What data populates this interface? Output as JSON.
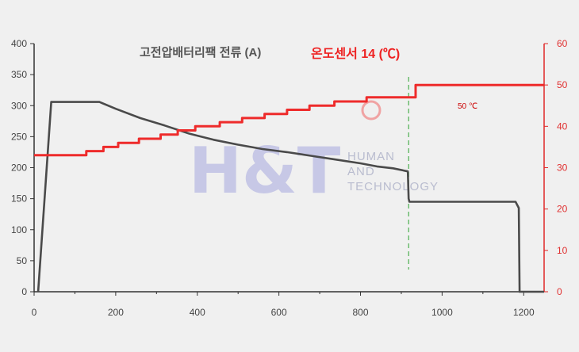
{
  "chart_data": {
    "type": "line",
    "title_current": "고전압배터리팩 전류 (A)",
    "title_temp": "온도센서 14 (℃)",
    "annotation": "50 ℃",
    "watermark": {
      "logo": "H&T",
      "line1": "HUMAN",
      "line2": "AND",
      "line3": "TECHNOLOGY"
    },
    "xlim": [
      0,
      1250
    ],
    "ylim_left": [
      0,
      400
    ],
    "ylim_right": [
      0,
      60
    ],
    "xticks": [
      "0",
      "200",
      "400",
      "600",
      "800",
      "1000",
      "1200"
    ],
    "yticks_left": [
      "0",
      "50",
      "100",
      "150",
      "200",
      "250",
      "300",
      "350",
      "400"
    ],
    "yticks_right": [
      "0",
      "10",
      "20",
      "30",
      "40",
      "50",
      "60"
    ],
    "grid": false,
    "marker_x": 918,
    "series": [
      {
        "name": "고전압배터리팩 전류 (A)",
        "axis": "left",
        "color": "#4a4a4a",
        "x": [
          10,
          42,
          160,
          200,
          260,
          320,
          380,
          440,
          500,
          560,
          620,
          680,
          740,
          800,
          840,
          880,
          916,
          918,
          920,
          1180,
          1188,
          1190,
          1250
        ],
        "y": [
          0,
          306,
          306,
          295,
          280,
          268,
          255,
          245,
          237,
          230,
          225,
          219,
          213,
          207,
          202,
          199,
          194,
          150,
          145,
          145,
          135,
          0,
          0
        ]
      },
      {
        "name": "온도센서 14 (℃)",
        "axis": "right",
        "color": "#ee2b2b",
        "x": [
          0,
          128,
          128,
          170,
          170,
          206,
          206,
          257,
          257,
          310,
          310,
          352,
          352,
          395,
          395,
          455,
          455,
          510,
          510,
          565,
          565,
          620,
          620,
          675,
          675,
          736,
          736,
          815,
          815,
          935,
          935,
          1250
        ],
        "y": [
          33,
          33,
          34,
          34,
          35,
          35,
          36,
          36,
          37,
          37,
          38,
          38,
          39,
          39,
          40,
          40,
          41,
          41,
          42,
          42,
          43,
          43,
          44,
          44,
          45,
          45,
          46,
          46,
          47,
          47,
          50,
          50
        ]
      }
    ]
  }
}
